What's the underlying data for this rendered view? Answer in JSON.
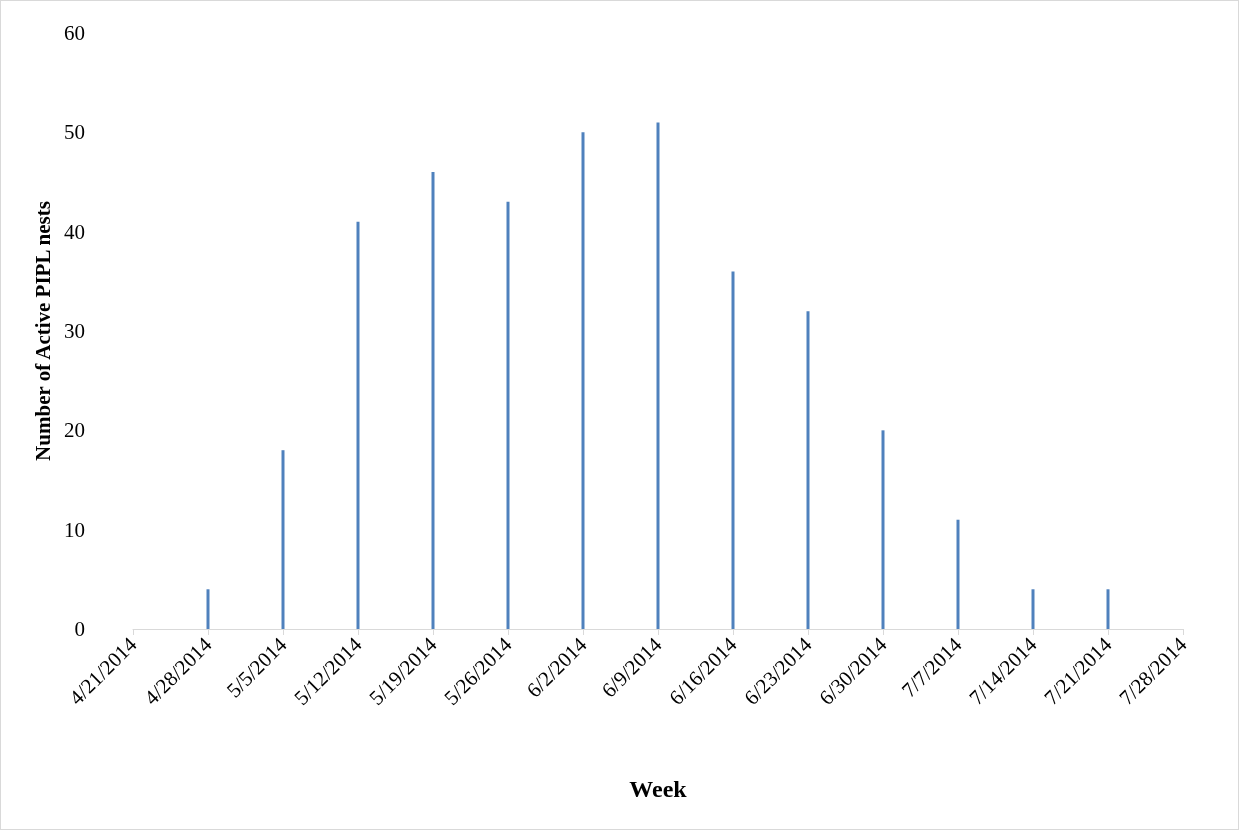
{
  "chart_data": {
    "type": "bar",
    "xlabel": "Week",
    "ylabel": "Number of Active PIPL nests",
    "x": [
      "2014-04-28",
      "2014-05-05",
      "2014-05-12",
      "2014-05-19",
      "2014-05-26",
      "2014-06-02",
      "2014-06-09",
      "2014-06-16",
      "2014-06-23",
      "2014-06-30",
      "2014-07-07",
      "2014-07-14",
      "2014-07-21"
    ],
    "values": [
      4,
      18,
      41,
      46,
      43,
      50,
      51,
      36,
      32,
      20,
      11,
      4,
      4
    ],
    "color": "#4f81bd",
    "xlim": [
      "2014-04-21",
      "2014-07-28"
    ],
    "xticks": [
      {
        "value": "2014-04-21",
        "label": "4/21/2014"
      },
      {
        "value": "2014-04-28",
        "label": "4/28/2014"
      },
      {
        "value": "2014-05-05",
        "label": "5/5/2014"
      },
      {
        "value": "2014-05-12",
        "label": "5/12/2014"
      },
      {
        "value": "2014-05-19",
        "label": "5/19/2014"
      },
      {
        "value": "2014-05-26",
        "label": "5/26/2014"
      },
      {
        "value": "2014-06-02",
        "label": "6/2/2014"
      },
      {
        "value": "2014-06-09",
        "label": "6/9/2014"
      },
      {
        "value": "2014-06-16",
        "label": "6/16/2014"
      },
      {
        "value": "2014-06-23",
        "label": "6/23/2014"
      },
      {
        "value": "2014-06-30",
        "label": "6/30/2014"
      },
      {
        "value": "2014-07-07",
        "label": "7/7/2014"
      },
      {
        "value": "2014-07-14",
        "label": "7/14/2014"
      },
      {
        "value": "2014-07-21",
        "label": "7/21/2014"
      },
      {
        "value": "2014-07-28",
        "label": "7/28/2014"
      }
    ],
    "ylim": [
      0,
      60
    ],
    "yticks": [
      0,
      10,
      20,
      30,
      40,
      50,
      60
    ],
    "grid": false
  }
}
